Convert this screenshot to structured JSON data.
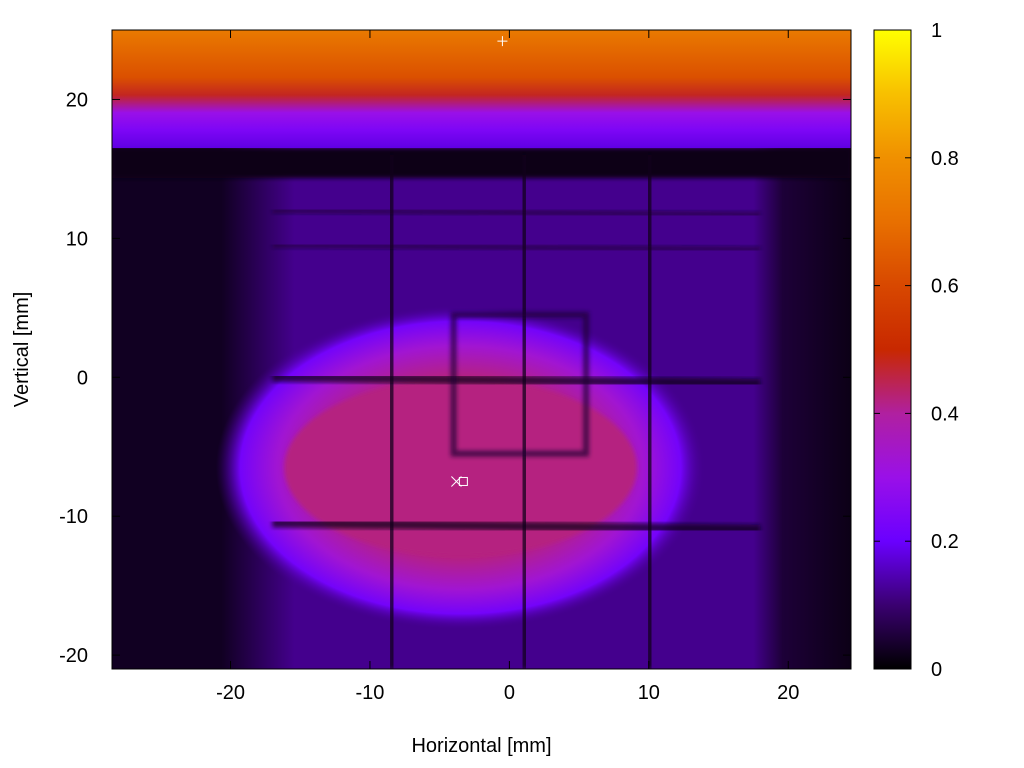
{
  "chart_data": {
    "type": "heatmap",
    "xlabel": "Horizontal [mm]",
    "ylabel": "Vertical [mm]",
    "xlim": [
      -28.5,
      24.5
    ],
    "ylim": [
      -21,
      25
    ],
    "x_ticks": [
      -20,
      -10,
      0,
      10,
      20
    ],
    "y_ticks": [
      -20,
      -10,
      0,
      10,
      20
    ],
    "colorbar": {
      "range": [
        0,
        1
      ],
      "ticks": [
        0,
        0.2,
        0.4,
        0.6,
        0.8,
        1
      ],
      "stops": [
        {
          "value": 0.0,
          "color": "#000000"
        },
        {
          "value": 0.1,
          "color": "#3a0070"
        },
        {
          "value": 0.2,
          "color": "#6a00ff"
        },
        {
          "value": 0.3,
          "color": "#9a10e8"
        },
        {
          "value": 0.4,
          "color": "#b020a0"
        },
        {
          "value": 0.5,
          "color": "#c82800"
        },
        {
          "value": 0.6,
          "color": "#d84800"
        },
        {
          "value": 0.7,
          "color": "#e87000"
        },
        {
          "value": 0.8,
          "color": "#f09000"
        },
        {
          "value": 0.9,
          "color": "#f8c000"
        },
        {
          "value": 1.0,
          "color": "#ffff00"
        }
      ]
    },
    "features": {
      "top_band": {
        "y_from": 16.5,
        "y_to": 25,
        "value_top": 0.73,
        "value_bottom": 0.28
      },
      "background_value": 0.12,
      "dark_left_strip": {
        "x_from": -28.5,
        "x_to": -19,
        "value": 0.03
      },
      "dark_right_strip": {
        "x_from": 17.5,
        "x_to": 24.5,
        "value": 0.04
      },
      "spot": {
        "center_x": -3.5,
        "center_y": -6.5,
        "rx": 13,
        "ry": 6.5,
        "value": 0.42
      },
      "grid_vertical_lines_x": [
        -8.5,
        1,
        10
      ],
      "grid_horizontal_lines_y": [
        0,
        -10.5
      ],
      "inner_box": {
        "x_from": -4,
        "x_to": 5.5,
        "y_from": -5.5,
        "y_to": 4.5
      },
      "markers": [
        {
          "symbol": "+",
          "x": -0.5,
          "y": 24.2
        },
        {
          "symbol": "×",
          "x": -3.8,
          "y": -7.5
        },
        {
          "symbol": "□",
          "x": -3.3,
          "y": -7.5
        }
      ]
    }
  }
}
